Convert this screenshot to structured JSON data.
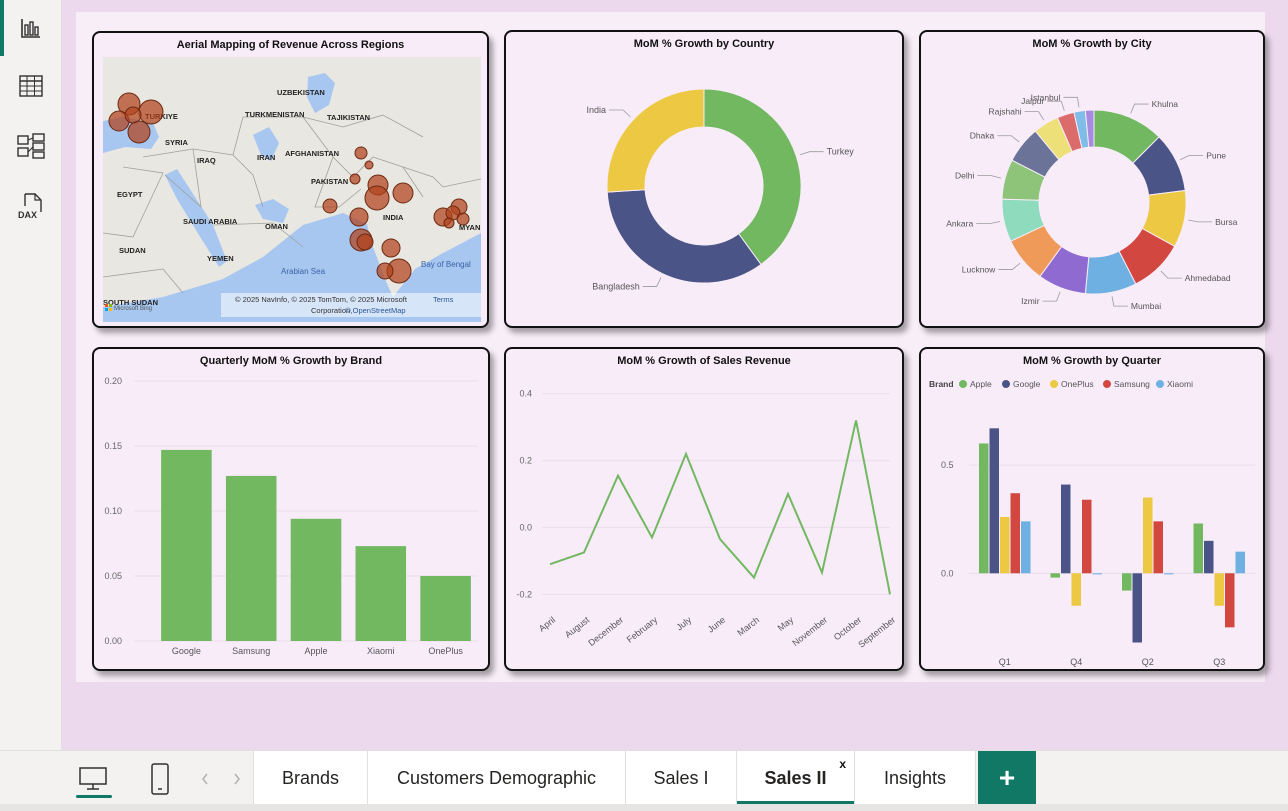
{
  "theme": {
    "accent": "#117865",
    "green": "#71b861",
    "navy": "#4a5486",
    "yellow": "#ecc843",
    "red": "#d2473f",
    "light_blue": "#6fb0e2"
  },
  "left_rail": {
    "icons": [
      "report-view-icon",
      "table-view-icon",
      "model-view-icon",
      "dax-query-icon"
    ],
    "dax_label": "DAX"
  },
  "visuals": {
    "map": {
      "title": "Aerial Mapping of Revenue Across Regions",
      "country_labels": [
        "UZBEKISTAN",
        "TURKIYE",
        "TURKMENISTAN",
        "TAJIKISTAN",
        "SYRIA",
        "IRAQ",
        "IRAN",
        "AFGHANISTAN",
        "PAKISTAN",
        "EGYPT",
        "INDIA",
        "SAUDI ARABIA",
        "OMAN",
        "MYAN",
        "SUDAN",
        "YEMEN",
        "Arabian Sea",
        "Bay of Bengal",
        "SOUTH SUDAN"
      ],
      "attribution_line1": "© 2025 NavInfo, © 2025 TomTom, © 2025 Microsoft",
      "attribution_terms": "Terms",
      "attribution_line2_prefix": "Corporation,",
      "attribution_osm": "© OpenStreetMap",
      "logo_text": "Microsoft Bing"
    },
    "country_donut": {
      "title": "MoM % Growth by Country",
      "chart_data": {
        "type": "pie",
        "donut": true,
        "categories": [
          "Turkey",
          "Bangladesh",
          "India"
        ],
        "values": [
          40,
          34,
          26
        ],
        "colors": [
          "#71b861",
          "#4a5486",
          "#ecc843"
        ]
      }
    },
    "city_donut": {
      "title": "MoM % Growth by City",
      "chart_data": {
        "type": "pie",
        "donut": true,
        "categories": [
          "Khulna",
          "Pune",
          "Bursa",
          "Ahmedabad",
          "Mumbai",
          "Izmir",
          "Lucknow",
          "Ankara",
          "Delhi",
          "Dhaka",
          "Rajshahi",
          "Jaipur",
          "Istanbul",
          ""
        ],
        "values": [
          12.5,
          10.5,
          10,
          9.5,
          9,
          8.5,
          8,
          7.5,
          7,
          6.5,
          4.5,
          3,
          2,
          1.5
        ],
        "colors": [
          "#71b861",
          "#4a5486",
          "#ecc843",
          "#d2473f",
          "#6fb0e2",
          "#8f6ad1",
          "#ef9a58",
          "#8fdbbe",
          "#8dc47a",
          "#6c7399",
          "#ede078",
          "#dc6c6c",
          "#7fbce8",
          "#a68be0"
        ]
      }
    },
    "brand_bar": {
      "title": "Quarterly MoM % Growth by Brand",
      "chart_data": {
        "type": "bar",
        "categories": [
          "Google",
          "Samsung",
          "Apple",
          "Xiaomi",
          "OnePlus"
        ],
        "values": [
          0.147,
          0.127,
          0.094,
          0.073,
          0.05
        ],
        "ylim": [
          0,
          0.2
        ],
        "yticks": [
          "0.20",
          "0.15",
          "0.10",
          "0.05",
          "0.00"
        ],
        "color": "#71b861"
      }
    },
    "revenue_line": {
      "title": "MoM % Growth of Sales Revenue",
      "chart_data": {
        "type": "line",
        "categories": [
          "April",
          "August",
          "December",
          "February",
          "July",
          "June",
          "March",
          "May",
          "November",
          "October",
          "September"
        ],
        "values": [
          -0.11,
          -0.075,
          0.155,
          -0.03,
          0.22,
          -0.035,
          -0.15,
          0.1,
          -0.135,
          0.32,
          -0.2
        ],
        "ylim": [
          -0.25,
          0.45
        ],
        "yticks": [
          "0.4",
          "0.2",
          "0.0",
          "-0.2"
        ],
        "color": "#71b861"
      }
    },
    "quarter_bar": {
      "title": "MoM % Growth by Quarter",
      "legend_title": "Brand",
      "chart_data": {
        "type": "bar",
        "categories": [
          "Q1",
          "Q4",
          "Q2",
          "Q3"
        ],
        "series": [
          {
            "name": "Apple",
            "color": "#71b861",
            "values": [
              0.6,
              -0.02,
              -0.08,
              0.23
            ]
          },
          {
            "name": "Google",
            "color": "#4a5486",
            "values": [
              0.67,
              0.41,
              -0.32,
              0.15
            ]
          },
          {
            "name": "OnePlus",
            "color": "#ecc843",
            "values": [
              0.26,
              -0.15,
              0.35,
              -0.15
            ]
          },
          {
            "name": "Samsung",
            "color": "#d2473f",
            "values": [
              0.37,
              0.34,
              0.24,
              -0.25
            ]
          },
          {
            "name": "Xiaomi",
            "color": "#6fb0e2",
            "values": [
              0.24,
              -0.005,
              -0.005,
              0.1
            ]
          }
        ],
        "ylim": [
          -0.35,
          0.75
        ],
        "yticks": [
          "0.5",
          "0.0"
        ],
        "legend_position": "top-left"
      }
    }
  },
  "page_tabs": [
    {
      "label": "Brands",
      "active": false
    },
    {
      "label": "Customers Demographic",
      "active": false
    },
    {
      "label": "Sales I",
      "active": false
    },
    {
      "label": "Sales II",
      "active": true
    },
    {
      "label": "Insights",
      "active": false
    }
  ],
  "active_tab_close": "x",
  "add_page_label": "+",
  "view_buttons": [
    "desktop-view-icon",
    "mobile-view-icon"
  ]
}
